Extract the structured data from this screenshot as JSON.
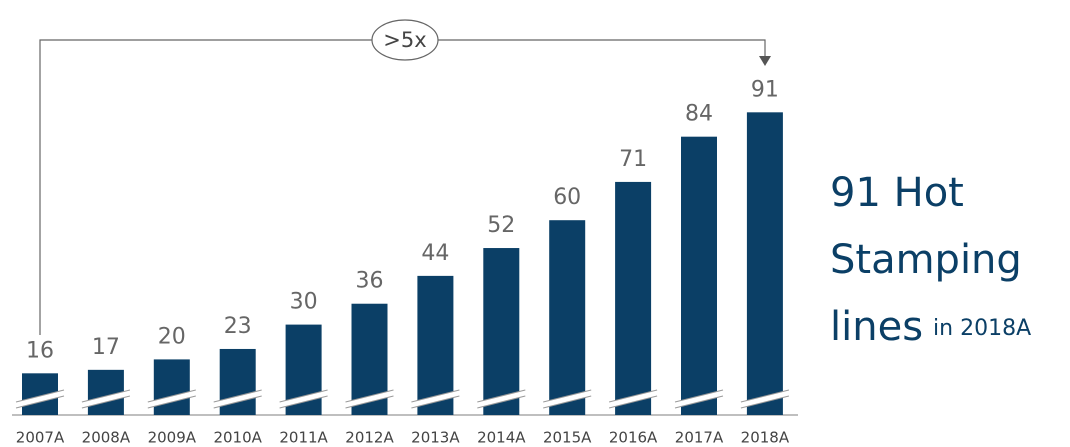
{
  "chart_data": {
    "type": "bar",
    "categories": [
      "2007A",
      "2008A",
      "2009A",
      "2010A",
      "2011A",
      "2012A",
      "2013A",
      "2014A",
      "2015A",
      "2016A",
      "2017A",
      "2018A"
    ],
    "values": [
      16,
      17,
      20,
      23,
      30,
      36,
      44,
      52,
      60,
      71,
      84,
      91
    ],
    "color": "#0b3f66",
    "annotation": ">5x",
    "side_text": {
      "lines": [
        "91 Hot",
        "Stamping",
        "lines"
      ],
      "suffix": "in 2018A"
    }
  }
}
